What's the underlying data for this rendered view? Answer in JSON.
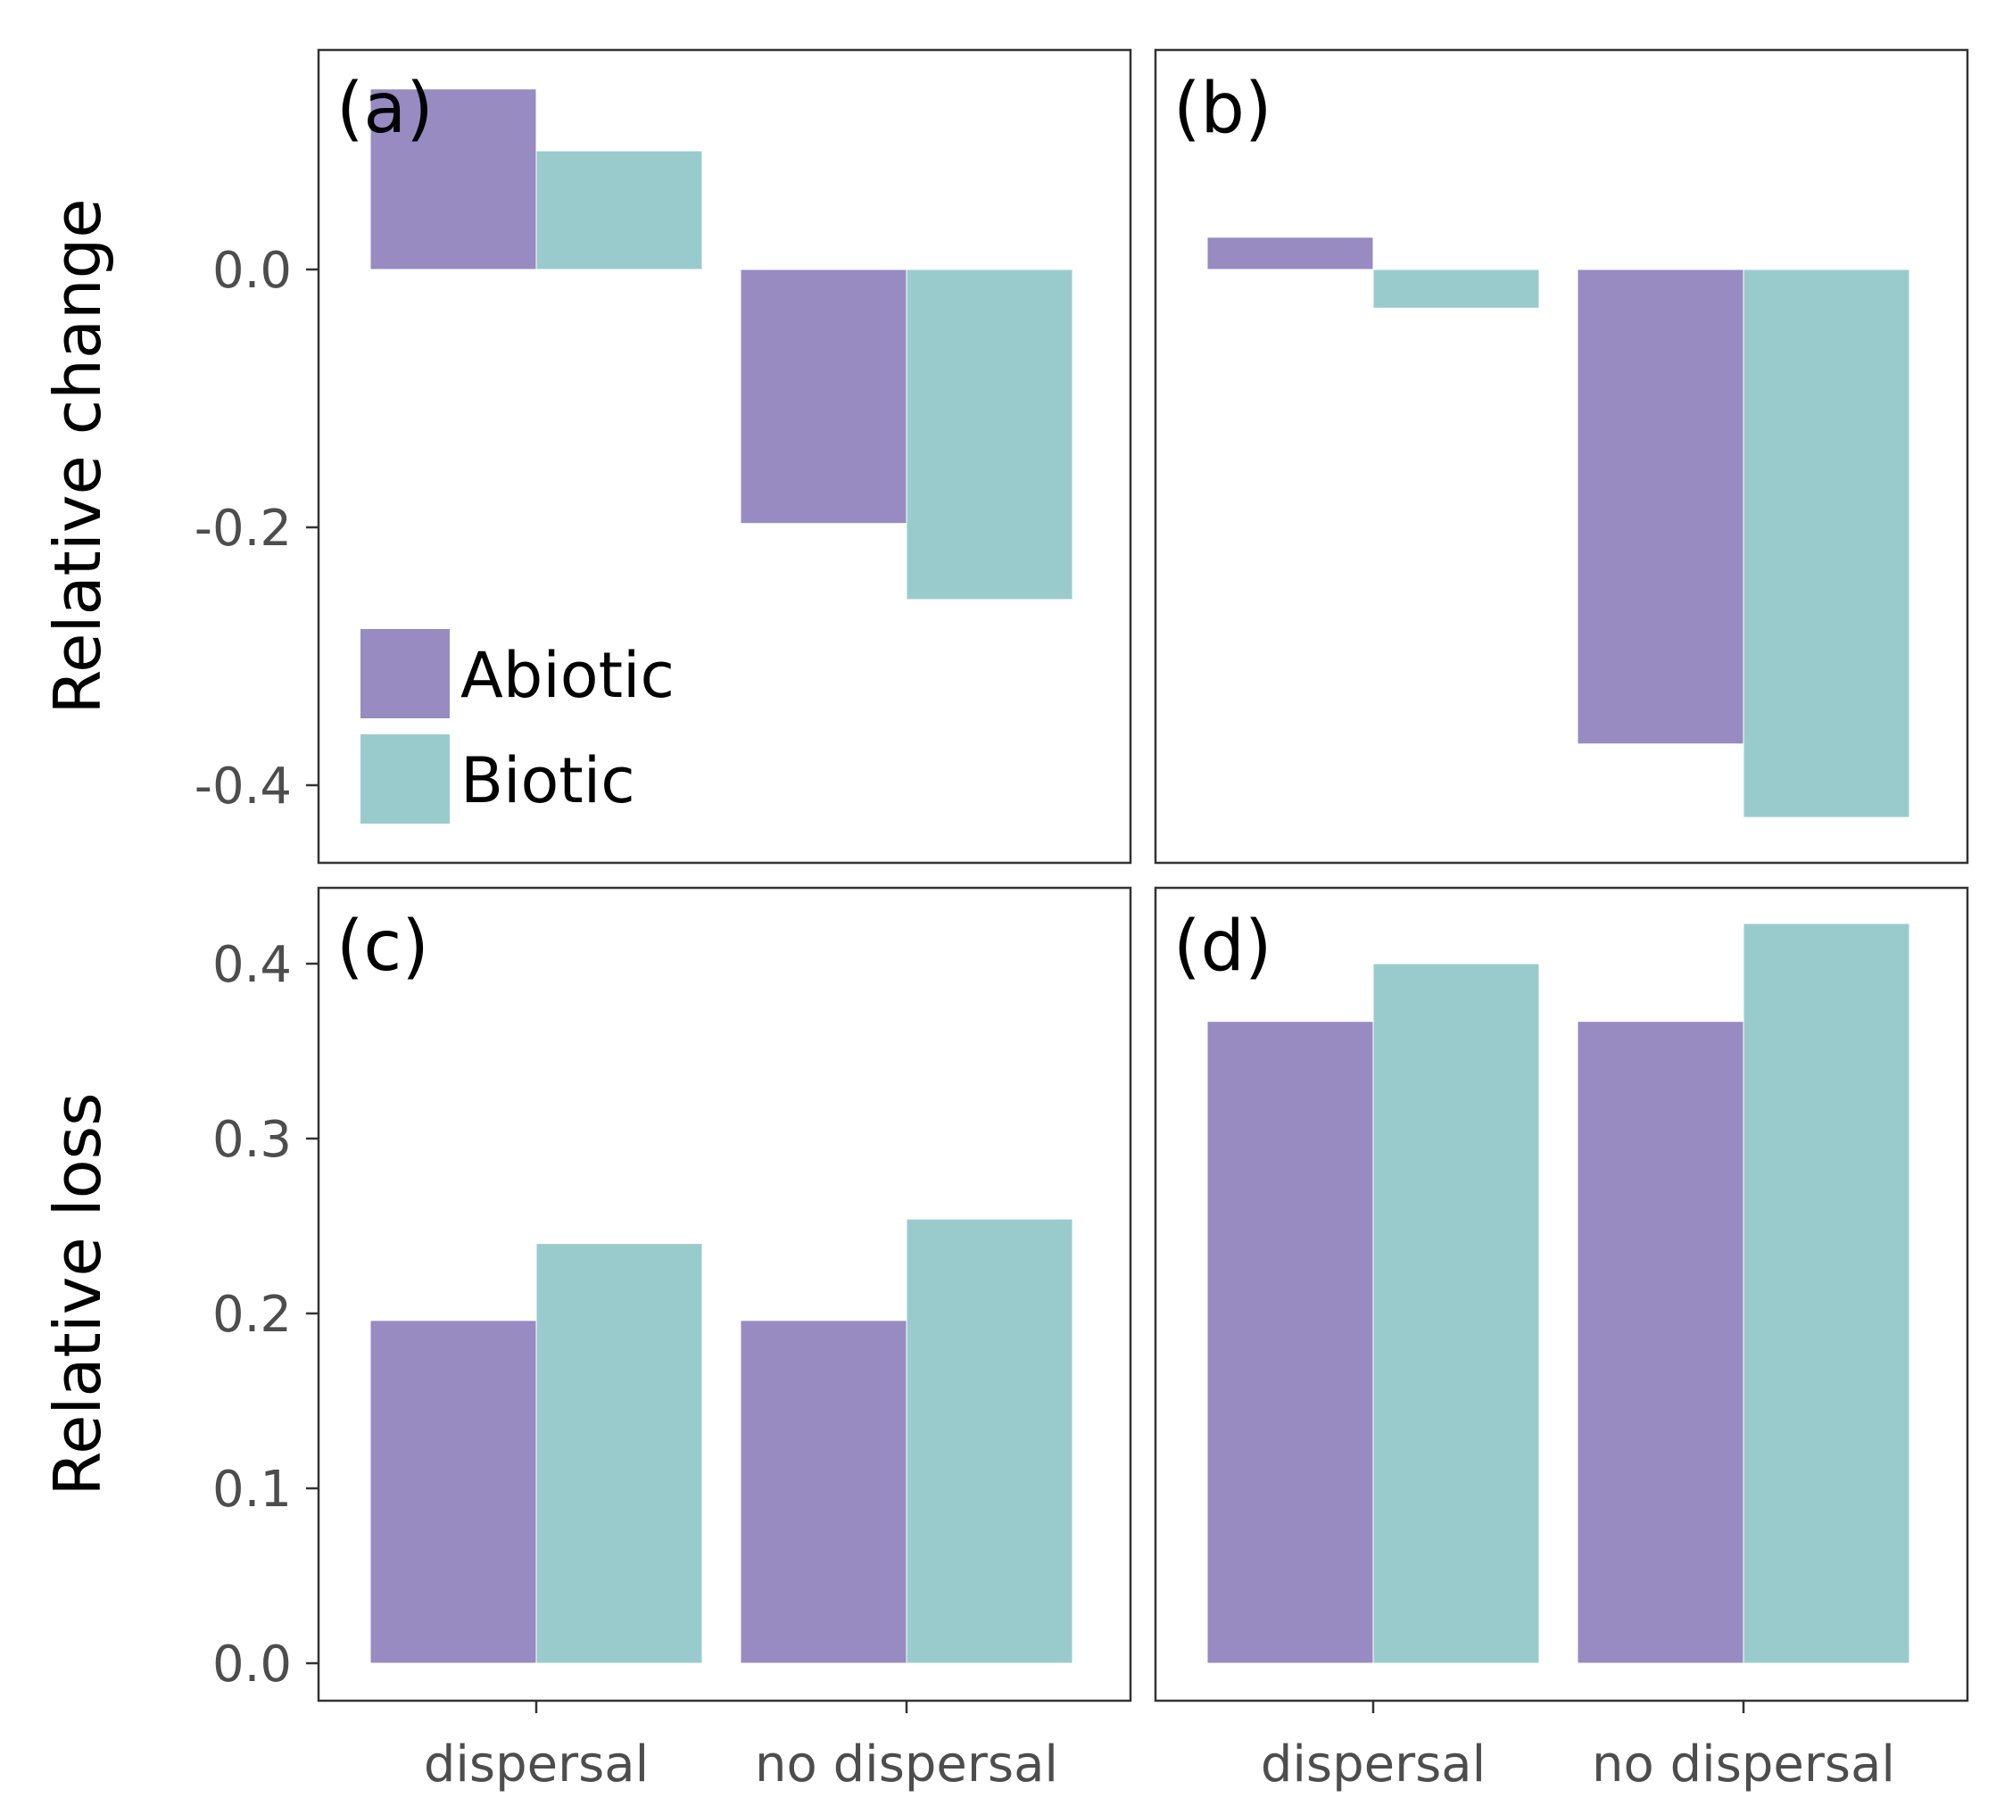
{
  "chart_data": {
    "type": "bar",
    "categories": [
      "dispersal",
      "no dispersal"
    ],
    "legend": {
      "placement": "bottom-left of panel (a)",
      "entries": [
        {
          "name": "Abiotic",
          "color": "#978bc2"
        },
        {
          "name": "Biotic",
          "color": "#9acbcc"
        }
      ]
    },
    "rows": [
      {
        "ylabel": "Relative change",
        "ylim": [
          -0.45,
          0.17
        ],
        "yticks": [
          0.0,
          -0.2,
          -0.4
        ],
        "ytick_labels": [
          "0.0",
          "-0.2",
          "-0.4"
        ]
      },
      {
        "ylabel": "Relative loss",
        "ylim": [
          -0.02,
          0.44
        ],
        "yticks": [
          0.0,
          0.1,
          0.2,
          0.3,
          0.4
        ],
        "ytick_labels": [
          "0.0",
          "0.1",
          "0.2",
          "0.3",
          "0.4"
        ]
      }
    ],
    "panels": [
      {
        "label": "(a)",
        "row": 0,
        "col": 0,
        "series": [
          {
            "name": "Abiotic",
            "values": [
              0.14,
              -0.197
            ]
          },
          {
            "name": "Biotic",
            "values": [
              0.092,
              -0.256
            ]
          }
        ]
      },
      {
        "label": "(b)",
        "row": 0,
        "col": 1,
        "series": [
          {
            "name": "Abiotic",
            "values": [
              0.025,
              -0.368
            ]
          },
          {
            "name": "Biotic",
            "values": [
              -0.03,
              -0.425
            ]
          }
        ]
      },
      {
        "label": "(c)",
        "row": 1,
        "col": 0,
        "series": [
          {
            "name": "Abiotic",
            "values": [
              0.196,
              0.196
            ]
          },
          {
            "name": "Biotic",
            "values": [
              0.24,
              0.254
            ]
          }
        ]
      },
      {
        "label": "(d)",
        "row": 1,
        "col": 1,
        "series": [
          {
            "name": "Abiotic",
            "values": [
              0.367,
              0.367
            ]
          },
          {
            "name": "Biotic",
            "values": [
              0.4,
              0.423
            ]
          }
        ]
      }
    ]
  }
}
